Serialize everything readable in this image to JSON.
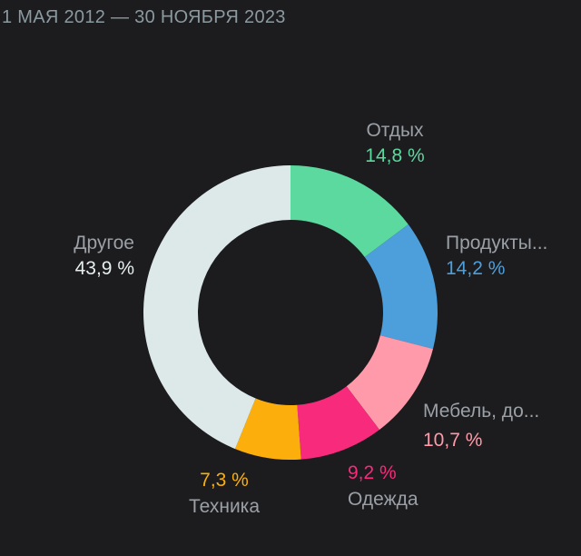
{
  "header": {
    "date_range": "1 МАЯ 2012 — 30 НОЯБРЯ 2023"
  },
  "chart_data": {
    "type": "pie",
    "style": "donut",
    "categories": [
      "Отдых",
      "Продукты...",
      "Мебель, до...",
      "Одежда",
      "Техника",
      "Другое"
    ],
    "values": [
      14.8,
      14.2,
      10.7,
      9.2,
      7.3,
      43.9
    ],
    "value_labels": [
      "14,8 %",
      "14,2 %",
      "10,7 %",
      "9,2 %",
      "7,3 %",
      "43,9 %"
    ],
    "colors": [
      "#5bd99f",
      "#4d9fdc",
      "#ff9aaa",
      "#f72a7c",
      "#fcaf0c",
      "#dde9e9"
    ],
    "label_color": "#9aa0a6",
    "percent_color_other": "#e6eef0"
  }
}
